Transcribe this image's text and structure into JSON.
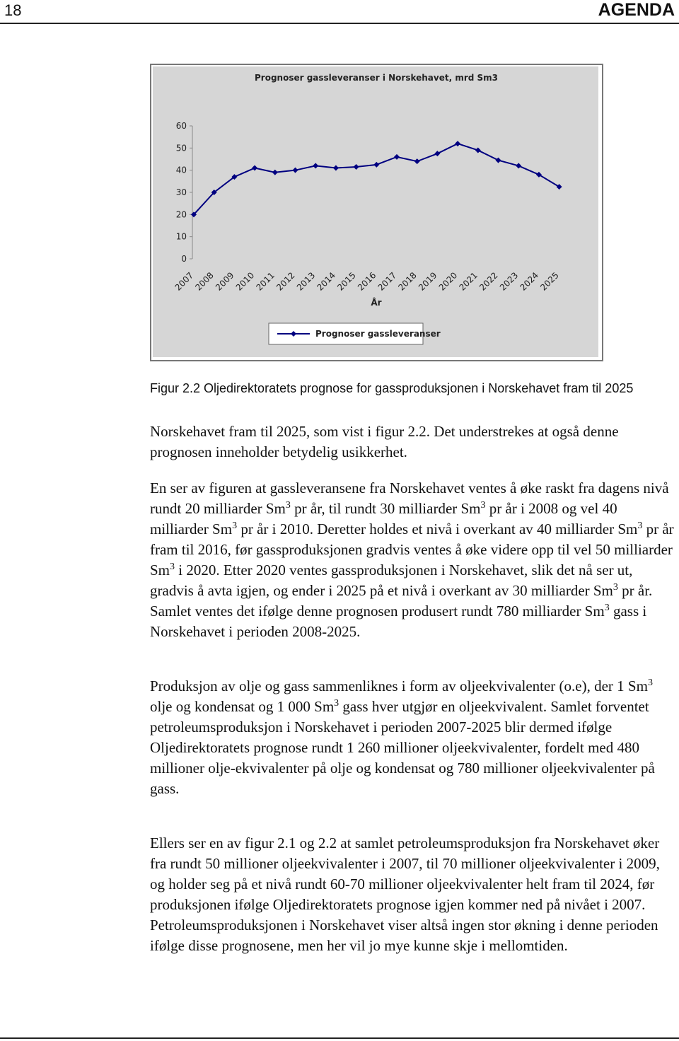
{
  "header": {
    "page_number": "18",
    "brand": "AGENDA"
  },
  "chart_data": {
    "type": "line",
    "title": "Prognoser gassleveranser i Norskehavet, mrd Sm3",
    "x_label": "År",
    "categories": [
      "2007",
      "2008",
      "2009",
      "2010",
      "2011",
      "2012",
      "2013",
      "2014",
      "2015",
      "2016",
      "2017",
      "2018",
      "2019",
      "2020",
      "2021",
      "2022",
      "2023",
      "2024",
      "2025"
    ],
    "series": [
      {
        "name": "Prognoser gassleveranser",
        "color": "#000080",
        "values": [
          20,
          30,
          37,
          41,
          39,
          40,
          42,
          41,
          41.5,
          42.5,
          46,
          44,
          47.5,
          52,
          49,
          44.5,
          42,
          38,
          32.5
        ]
      }
    ],
    "ylim": [
      0,
      60
    ],
    "yticks": [
      0,
      10,
      20,
      30,
      40,
      50,
      60
    ]
  },
  "caption": "Figur 2.2 Oljedirektoratets prognose for gassproduksjonen i Norskehavet fram til 2025",
  "paragraphs": [
    [
      "Norskehavet fram til 2025, som vist i figur 2.2. Det understrekes at også denne prognosen inneholder betydelig usikkerhet."
    ],
    [
      "En ser av figuren at gassleveransene fra Norskehavet ventes å øke raskt fra dagens nivå rundt 20 milliarder Sm",
      {
        "sup": "3"
      },
      " pr år, til rundt 30 milliarder Sm",
      {
        "sup": "3"
      },
      " pr år i 2008 og vel 40 milliarder Sm",
      {
        "sup": "3"
      },
      " pr år i 2010. Deretter holdes et nivå i overkant av 40 milliarder Sm",
      {
        "sup": "3"
      },
      " pr år fram til 2016, før gassproduksjonen gradvis ventes å øke videre opp til vel 50 milliarder Sm",
      {
        "sup": "3"
      },
      " i 2020. Etter 2020 ventes gassproduksjonen i Norskehavet, slik det nå ser ut, gradvis å avta igjen, og ender i 2025 på et nivå i overkant av 30 milliarder Sm",
      {
        "sup": "3"
      },
      " pr år. Samlet ventes det ifølge denne prognosen produsert rundt 780 milliarder Sm",
      {
        "sup": "3"
      },
      " gass i Norskehavet i perioden 2008-2025."
    ],
    [
      "Produksjon av olje og gass sammenliknes i form av oljeekvivalenter (o.e), der 1 Sm",
      {
        "sup": "3"
      },
      " olje og kondensat og 1 000 Sm",
      {
        "sup": "3"
      },
      " gass hver utgjør en oljeekvivalent. Samlet forventet petroleumsproduksjon i Norskehavet i perioden 2007-2025 blir dermed ifølge Oljedirektoratets prognose rundt 1 260 millioner oljeekvivalenter, fordelt med 480 millioner olje-ekvivalenter på olje og kondensat og 780 millioner oljeekvivalenter på gass."
    ],
    [
      "Ellers ser en av figur 2.1 og 2.2 at samlet petroleumsproduksjon fra Norskehavet øker fra rundt 50 millioner oljeekvivalenter i 2007, til 70 millioner oljeekvivalenter i 2009, og holder seg på et nivå rundt 60-70 millioner oljeekvivalenter helt fram til 2024, før produksjonen ifølge Oljedirektoratets prognose igjen kommer ned på nivået i 2007. Petroleumsproduksjonen i Norskehavet viser altså ingen stor økning i denne perioden ifølge disse prognosene, men her vil jo mye kunne skje i mellomtiden."
    ]
  ]
}
